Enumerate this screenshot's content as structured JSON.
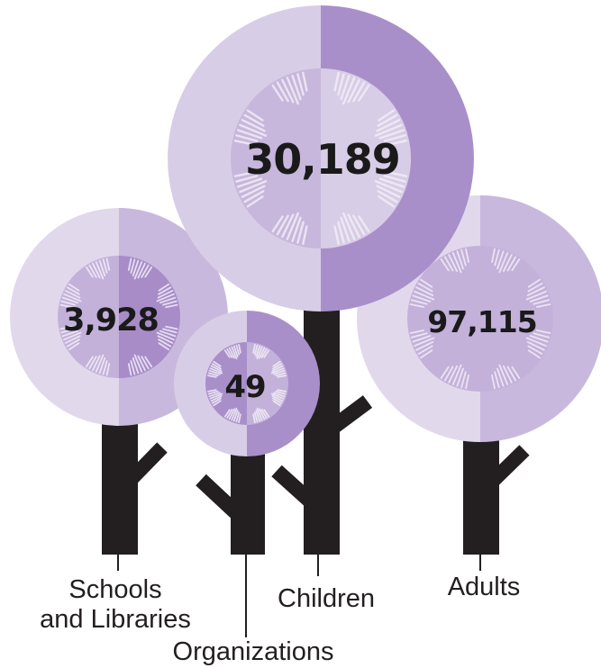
{
  "colors": {
    "trunk": "#231f20",
    "light": "#d8cde6",
    "mid": "#c3b1da",
    "dark": "#a78cc8",
    "ray": "#f2edf7"
  },
  "trees": [
    {
      "id": "schools",
      "value": "3,928",
      "label_lines": [
        "Schools",
        "and Libraries"
      ]
    },
    {
      "id": "organizations",
      "value": "49",
      "label_lines": [
        "Organizations"
      ]
    },
    {
      "id": "children",
      "value": "30,189",
      "label_lines": [
        "Children"
      ]
    },
    {
      "id": "adults",
      "value": "97,115",
      "label_lines": [
        "Adults"
      ]
    }
  ]
}
